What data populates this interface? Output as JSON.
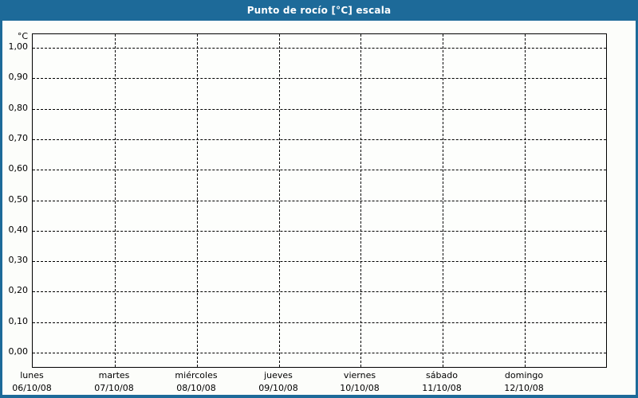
{
  "header": {
    "title": "Punto de rocío [°C] escala"
  },
  "colors": {
    "accent_blue": "#1d6a99",
    "page_background": "#fcfdfa",
    "grid_color": "#000000",
    "title_text": "#ffffff"
  },
  "chart_data": {
    "type": "line",
    "title": "Punto de rocío [°C] escala",
    "ylabel": "°C",
    "ylim": [
      0.0,
      1.0
    ],
    "y_tick_step": 0.1,
    "y_tick_labels": [
      "1,00",
      "0,90",
      "0,80",
      "0,70",
      "0,60",
      "0,50",
      "0,40",
      "0,30",
      "0,20",
      "0,10",
      "0,00"
    ],
    "x_categories": [
      {
        "day": "lunes",
        "date": "06/10/08"
      },
      {
        "day": "martes",
        "date": "07/10/08"
      },
      {
        "day": "miércoles",
        "date": "08/10/08"
      },
      {
        "day": "jueves",
        "date": "09/10/08"
      },
      {
        "day": "viernes",
        "date": "10/10/08"
      },
      {
        "day": "sábado",
        "date": "11/10/08"
      },
      {
        "day": "domingo",
        "date": "12/10/08"
      }
    ],
    "series": [],
    "grid": "dashed",
    "legend": "none"
  }
}
